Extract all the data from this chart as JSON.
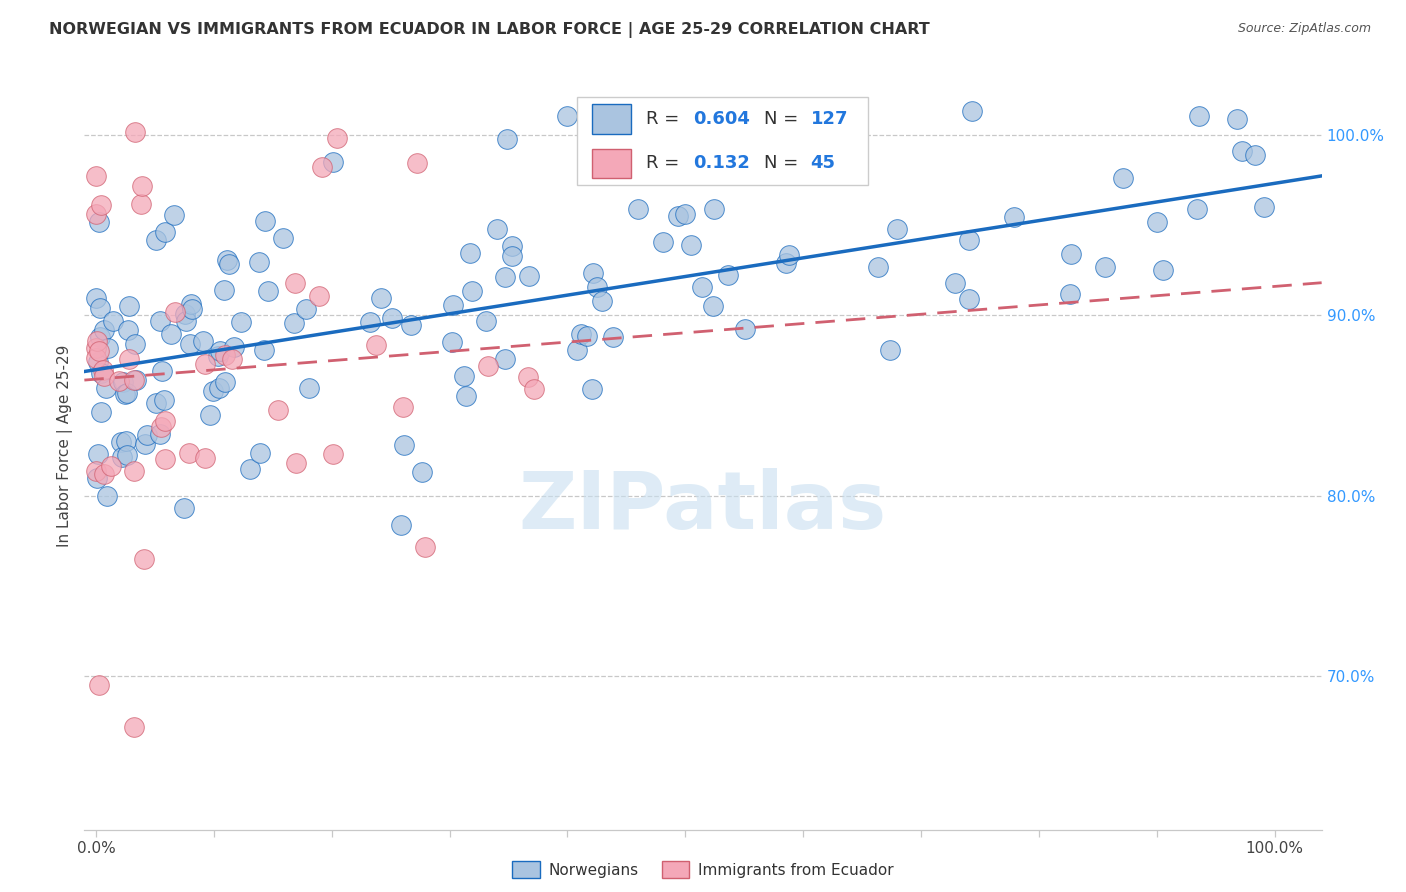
{
  "title": "NORWEGIAN VS IMMIGRANTS FROM ECUADOR IN LABOR FORCE | AGE 25-29 CORRELATION CHART",
  "source": "Source: ZipAtlas.com",
  "ylabel": "In Labor Force | Age 25-29",
  "xlim": [
    -0.01,
    1.04
  ],
  "ylim": [
    0.615,
    1.04
  ],
  "x_ticks": [
    0.0,
    0.1,
    0.2,
    0.3,
    0.4,
    0.5,
    0.6,
    0.7,
    0.8,
    0.9,
    1.0
  ],
  "x_tick_labels": [
    "0.0%",
    "",
    "",
    "",
    "",
    "",
    "",
    "",
    "",
    "",
    "100.0%"
  ],
  "y_tick_vals_right": [
    0.7,
    0.8,
    0.9,
    1.0
  ],
  "y_tick_labels_right": [
    "70.0%",
    "80.0%",
    "90.0%",
    "100.0%"
  ],
  "norwegian_R": 0.604,
  "norwegian_N": 127,
  "ecuador_R": 0.132,
  "ecuador_N": 45,
  "color_norwegian": "#aac4e0",
  "color_ecuador": "#f4a8b8",
  "color_norwegian_line": "#1a6bbf",
  "color_ecuador_line": "#d06070",
  "watermark_color": "#c8dff0",
  "grid_color": "#c8c8c8",
  "title_fontsize": 11.5,
  "source_fontsize": 9,
  "axis_label_fontsize": 11,
  "tick_fontsize": 11,
  "legend_fontsize": 13,
  "watermark_text": "ZIPatlas",
  "legend_R_color": "#2277dd",
  "legend_N_color": "#2277dd"
}
